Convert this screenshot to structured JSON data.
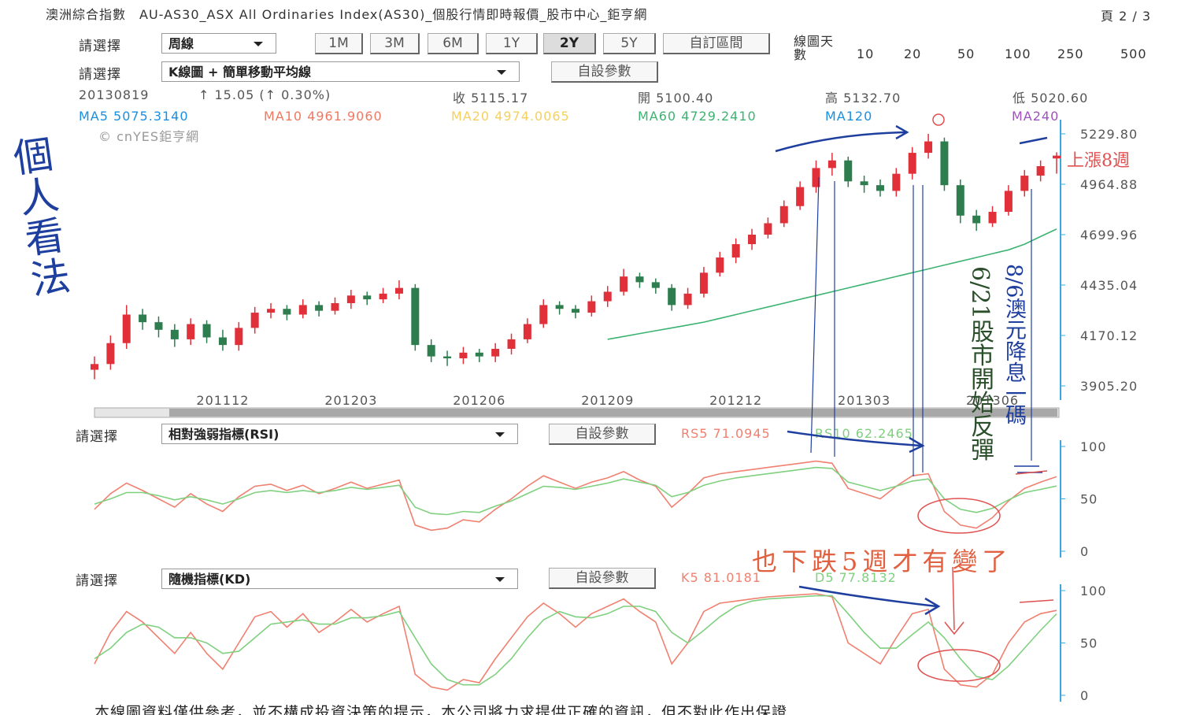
{
  "header": {
    "title": "澳洲綜合指數　AU-AS30_ASX All Ordinaries Index(AS30)_個股行情即時報價_股市中心_鉅亨網",
    "page": "頁 2 / 3"
  },
  "controls": {
    "label": "請選擇",
    "period": "周線",
    "ranges": [
      "1M",
      "3M",
      "6M",
      "1Y",
      "2Y",
      "5Y",
      "自訂區間"
    ],
    "days_label": "線圖天數",
    "days": [
      "10",
      "20",
      "50",
      "100",
      "250",
      "500"
    ],
    "chart_select": "K線圖 + 簡單移動平均線",
    "custom": "自設參數"
  },
  "quote": {
    "date": "20130819",
    "change": "↑ 15.05 (↑ 0.30%)",
    "close": "收 5115.17",
    "open": "開 5100.40",
    "high": "高 5132.70",
    "low": "低 5020.60"
  },
  "watermark": "© cnYES鉅亨網",
  "annotations": {
    "left": "個人看法",
    "up_weeks": "上漲8週",
    "rebound": "6/21股市開始反彈",
    "rate_cut": "8/6澳元降息一碼",
    "down_weeks": "也下跌5週才有變了"
  },
  "disclaimer": "本線圖資料僅供參考，並不構成投資決策的提示，本公司將力求提供正確的資訊，但不對此作出保證",
  "chart_data": [
    {
      "type": "candlestick",
      "up_color": "#e0303a",
      "down_color": "#2e7d4f",
      "categories": [
        null,
        null,
        null,
        null,
        null,
        null,
        null,
        null,
        "201112",
        null,
        null,
        null,
        null,
        null,
        null,
        null,
        "201203",
        null,
        null,
        null,
        null,
        null,
        null,
        null,
        "201206",
        null,
        null,
        null,
        null,
        null,
        null,
        null,
        "201209",
        null,
        null,
        null,
        null,
        null,
        null,
        null,
        "201212",
        null,
        null,
        null,
        null,
        null,
        null,
        null,
        "201303",
        null,
        null,
        null,
        null,
        null,
        null,
        null,
        "201306",
        null,
        null,
        null,
        null
      ],
      "open": [
        3990,
        4020,
        4130,
        4280,
        4240,
        4200,
        4150,
        4230,
        4160,
        4120,
        4210,
        4290,
        4310,
        4280,
        4330,
        4300,
        4340,
        4380,
        4360,
        4390,
        4420,
        4120,
        4060,
        4050,
        4080,
        4060,
        4100,
        4150,
        4230,
        4330,
        4310,
        4290,
        4350,
        4400,
        4480,
        4450,
        4420,
        4330,
        4390,
        4500,
        4580,
        4650,
        4700,
        4760,
        4850,
        4950,
        5050,
        5090,
        4980,
        4960,
        4930,
        5020,
        5130,
        5190,
        4960,
        4800,
        4760,
        4820,
        4930,
        5010,
        5100.4
      ],
      "high": [
        4060,
        4170,
        4330,
        4310,
        4270,
        4230,
        4260,
        4250,
        4200,
        4240,
        4320,
        4340,
        4330,
        4360,
        4350,
        4370,
        4410,
        4400,
        4420,
        4460,
        4440,
        4150,
        4090,
        4110,
        4100,
        4130,
        4180,
        4260,
        4360,
        4350,
        4330,
        4380,
        4430,
        4520,
        4500,
        4470,
        4440,
        4420,
        4530,
        4610,
        4680,
        4730,
        4790,
        4880,
        4980,
        5090,
        5130,
        5110,
        5010,
        4990,
        5050,
        5160,
        5230,
        5210,
        4990,
        4830,
        4850,
        4960,
        5040,
        5090,
        5132.7
      ],
      "low": [
        3940,
        3990,
        4100,
        4200,
        4160,
        4110,
        4120,
        4130,
        4090,
        4090,
        4180,
        4260,
        4250,
        4260,
        4270,
        4280,
        4310,
        4330,
        4340,
        4360,
        4090,
        4030,
        4010,
        4020,
        4030,
        4030,
        4070,
        4130,
        4210,
        4280,
        4260,
        4270,
        4320,
        4380,
        4420,
        4390,
        4300,
        4310,
        4370,
        4480,
        4550,
        4620,
        4680,
        4740,
        4830,
        4920,
        5010,
        4950,
        4920,
        4900,
        4900,
        4990,
        5100,
        4930,
        4760,
        4720,
        4740,
        4800,
        4900,
        4980,
        5020.6
      ],
      "close": [
        4020,
        4130,
        4280,
        4240,
        4200,
        4150,
        4230,
        4160,
        4120,
        4210,
        4290,
        4310,
        4280,
        4330,
        4300,
        4340,
        4380,
        4360,
        4390,
        4420,
        4120,
        4060,
        4050,
        4080,
        4060,
        4100,
        4150,
        4230,
        4330,
        4310,
        4290,
        4350,
        4400,
        4480,
        4450,
        4420,
        4330,
        4390,
        4500,
        4580,
        4650,
        4700,
        4760,
        4850,
        4950,
        5050,
        5090,
        4980,
        4960,
        4930,
        5020,
        5130,
        5190,
        4960,
        4800,
        4760,
        4820,
        4930,
        5010,
        5060,
        5115.17
      ],
      "series": [
        {
          "name": "MA60 4729.2410",
          "color": "#3cb371",
          "values": [
            null,
            null,
            null,
            null,
            null,
            null,
            null,
            null,
            null,
            null,
            null,
            null,
            null,
            null,
            null,
            null,
            null,
            null,
            null,
            null,
            null,
            null,
            null,
            null,
            null,
            null,
            null,
            null,
            null,
            null,
            null,
            null,
            4150,
            4165,
            4180,
            4195,
            4210,
            4225,
            4240,
            4260,
            4280,
            4300,
            4320,
            4340,
            4360,
            4380,
            4400,
            4420,
            4440,
            4460,
            4480,
            4500,
            4520,
            4540,
            4560,
            4580,
            4600,
            4620,
            4650,
            4690,
            4729.241
          ]
        }
      ],
      "ma_labels": [
        {
          "text": "MA5 5075.3140",
          "color": "#1a8fe0"
        },
        {
          "text": "MA10 4961.9060",
          "color": "#f07860"
        },
        {
          "text": "MA20 4974.0065",
          "color": "#f5d060"
        },
        {
          "text": "MA120",
          "color": "#1a8fe0"
        },
        {
          "text": "MA240",
          "color": "#a050c0"
        }
      ],
      "ylim": [
        3864,
        5271
      ],
      "yticks": [
        {
          "value": 3905.2,
          "label": "3905.20"
        },
        4170.12,
        4435.04,
        4699.96,
        4964.88,
        {
          "value": 5229.8,
          "label": "5229.80"
        }
      ]
    },
    {
      "type": "line",
      "indicator": "相對強弱指標(RSI)",
      "ylim": [
        0,
        100
      ],
      "yticks": [
        0,
        50,
        100
      ],
      "series": [
        {
          "name": "RS5 71.0945",
          "color": "#f08070",
          "values": [
            40,
            55,
            65,
            58,
            50,
            42,
            55,
            45,
            38,
            52,
            62,
            64,
            58,
            63,
            55,
            60,
            66,
            60,
            64,
            68,
            25,
            20,
            22,
            30,
            28,
            40,
            50,
            62,
            72,
            66,
            60,
            66,
            70,
            76,
            68,
            62,
            42,
            55,
            70,
            74,
            76,
            78,
            80,
            82,
            84,
            86,
            84,
            60,
            55,
            50,
            62,
            72,
            74,
            38,
            25,
            22,
            32,
            48,
            60,
            66,
            71.0945
          ]
        },
        {
          "name": "RS10 62.2465",
          "color": "#7fd07f",
          "values": [
            45,
            50,
            56,
            56,
            53,
            49,
            52,
            49,
            45,
            50,
            56,
            58,
            56,
            58,
            56,
            58,
            61,
            59,
            61,
            63,
            42,
            36,
            35,
            38,
            37,
            43,
            48,
            55,
            62,
            61,
            59,
            62,
            65,
            69,
            66,
            63,
            52,
            56,
            63,
            67,
            70,
            72,
            74,
            76,
            78,
            80,
            79,
            66,
            62,
            58,
            62,
            67,
            69,
            50,
            40,
            37,
            41,
            49,
            56,
            59,
            62.2465
          ]
        }
      ]
    },
    {
      "type": "line",
      "indicator": "隨機指標(KD)",
      "ylim": [
        0,
        100
      ],
      "yticks": [
        0,
        50,
        100
      ],
      "series": [
        {
          "name": "K5 81.0181",
          "color": "#f08070",
          "values": [
            30,
            60,
            80,
            70,
            55,
            40,
            60,
            40,
            25,
            50,
            75,
            80,
            65,
            78,
            60,
            70,
            82,
            70,
            78,
            85,
            20,
            8,
            5,
            15,
            12,
            35,
            55,
            75,
            88,
            78,
            65,
            78,
            85,
            92,
            80,
            70,
            30,
            50,
            80,
            88,
            90,
            92,
            94,
            95,
            96,
            97,
            94,
            50,
            40,
            30,
            55,
            78,
            82,
            25,
            10,
            8,
            20,
            50,
            70,
            78,
            81.0181
          ]
        },
        {
          "name": "D5 77.8132",
          "color": "#7fd07f",
          "values": [
            35,
            45,
            60,
            68,
            65,
            55,
            55,
            50,
            40,
            42,
            55,
            68,
            70,
            72,
            68,
            68,
            74,
            74,
            76,
            80,
            55,
            30,
            15,
            10,
            10,
            20,
            35,
            55,
            72,
            80,
            75,
            74,
            78,
            85,
            85,
            80,
            60,
            50,
            62,
            75,
            85,
            90,
            92,
            93,
            94,
            95,
            95,
            78,
            60,
            45,
            45,
            58,
            70,
            55,
            35,
            18,
            15,
            28,
            45,
            62,
            77.8132
          ]
        }
      ]
    }
  ]
}
